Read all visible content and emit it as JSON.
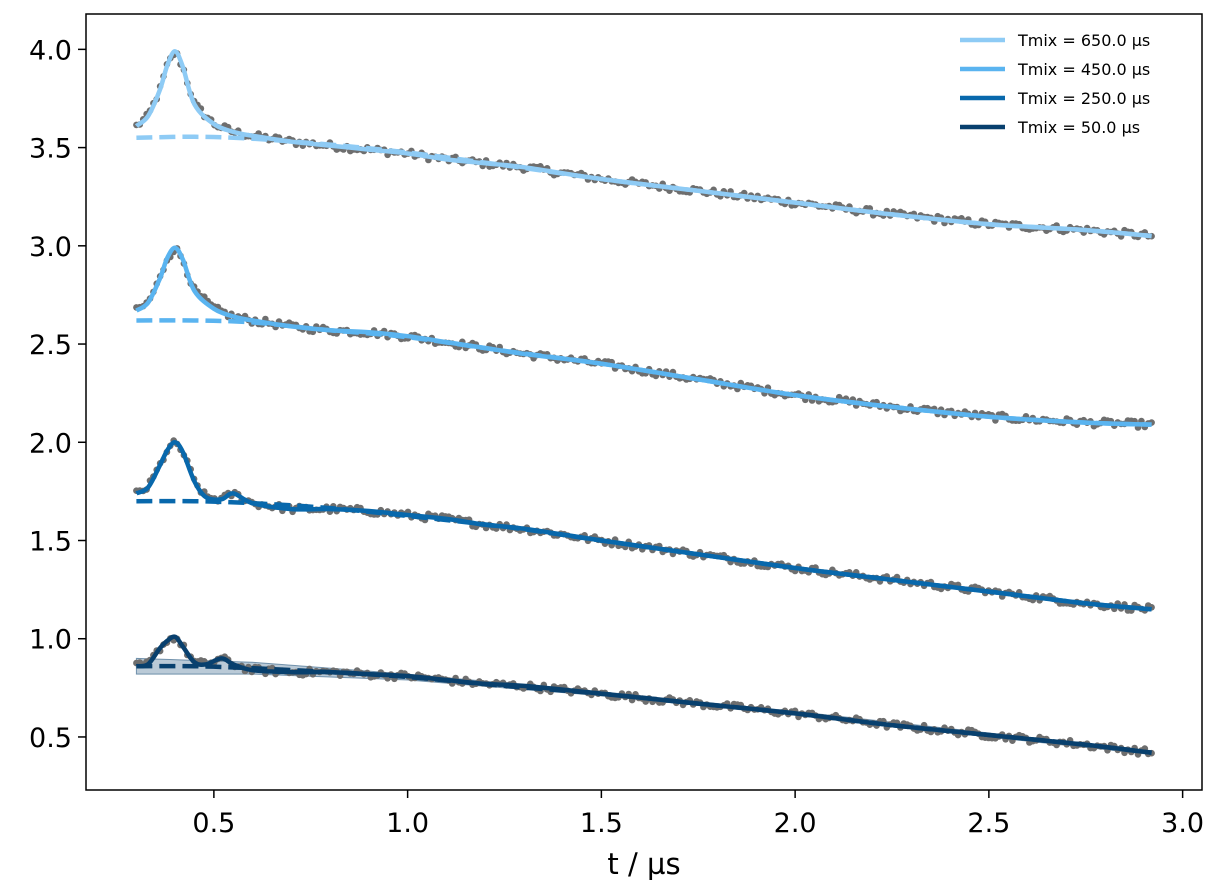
{
  "chart_data": {
    "type": "line",
    "title": "",
    "xlabel": "t / µs",
    "ylabel": "",
    "xlim": [
      0.17,
      3.05
    ],
    "ylim": [
      0.23,
      4.18
    ],
    "xticks": [
      0.5,
      1.0,
      1.5,
      2.0,
      2.5,
      3.0
    ],
    "xtick_labels": [
      "0.5",
      "1.0",
      "1.5",
      "2.0",
      "2.5",
      "3.0"
    ],
    "yticks": [
      0.5,
      1.0,
      1.5,
      2.0,
      2.5,
      3.0,
      3.5,
      4.0
    ],
    "ytick_labels": [
      "0.5",
      "1.0",
      "1.5",
      "2.0",
      "2.5",
      "3.0",
      "3.5",
      "4.0"
    ],
    "grid": false,
    "legend_position": "top-right",
    "data_color": "#6e6e6e",
    "series": [
      {
        "name": "Tmix = 650.0 µs",
        "color": "#8ecbf5",
        "fit": [
          [
            0.3,
            3.61
          ],
          [
            0.33,
            3.66
          ],
          [
            0.36,
            3.79
          ],
          [
            0.38,
            3.92
          ],
          [
            0.4,
            3.99
          ],
          [
            0.42,
            3.91
          ],
          [
            0.45,
            3.72
          ],
          [
            0.5,
            3.62
          ],
          [
            0.55,
            3.58
          ],
          [
            0.6,
            3.56
          ],
          [
            0.7,
            3.53
          ],
          [
            0.8,
            3.51
          ],
          [
            0.9,
            3.49
          ],
          [
            1.0,
            3.47
          ],
          [
            1.1,
            3.44
          ],
          [
            1.2,
            3.42
          ],
          [
            1.3,
            3.4
          ],
          [
            1.5,
            3.34
          ],
          [
            1.75,
            3.28
          ],
          [
            2.0,
            3.22
          ],
          [
            2.25,
            3.16
          ],
          [
            2.5,
            3.11
          ],
          [
            2.75,
            3.08
          ],
          [
            2.92,
            3.05
          ]
        ],
        "background": [
          [
            0.3,
            3.55
          ],
          [
            0.45,
            3.555
          ],
          [
            0.6,
            3.545
          ],
          [
            0.8,
            3.515
          ],
          [
            1.0,
            3.475
          ],
          [
            1.25,
            3.41
          ],
          [
            1.5,
            3.34
          ],
          [
            1.75,
            3.28
          ],
          [
            2.0,
            3.22
          ],
          [
            2.25,
            3.16
          ],
          [
            2.5,
            3.11
          ],
          [
            2.75,
            3.08
          ],
          [
            2.92,
            3.05
          ]
        ]
      },
      {
        "name": "Tmix = 450.0 µs",
        "color": "#5ab4f0",
        "fit": [
          [
            0.3,
            2.67
          ],
          [
            0.33,
            2.71
          ],
          [
            0.36,
            2.83
          ],
          [
            0.38,
            2.94
          ],
          [
            0.4,
            2.99
          ],
          [
            0.42,
            2.93
          ],
          [
            0.45,
            2.77
          ],
          [
            0.5,
            2.68
          ],
          [
            0.55,
            2.64
          ],
          [
            0.6,
            2.62
          ],
          [
            0.7,
            2.59
          ],
          [
            0.8,
            2.57
          ],
          [
            0.9,
            2.56
          ],
          [
            1.0,
            2.54
          ],
          [
            1.1,
            2.51
          ],
          [
            1.2,
            2.48
          ],
          [
            1.3,
            2.45
          ],
          [
            1.5,
            2.4
          ],
          [
            1.75,
            2.32
          ],
          [
            2.0,
            2.24
          ],
          [
            2.25,
            2.18
          ],
          [
            2.5,
            2.13
          ],
          [
            2.75,
            2.1
          ],
          [
            2.92,
            2.09
          ]
        ],
        "background": [
          [
            0.3,
            2.62
          ],
          [
            0.45,
            2.62
          ],
          [
            0.6,
            2.61
          ],
          [
            0.8,
            2.57
          ],
          [
            1.0,
            2.535
          ],
          [
            1.25,
            2.465
          ],
          [
            1.5,
            2.4
          ],
          [
            1.75,
            2.32
          ],
          [
            2.0,
            2.24
          ],
          [
            2.25,
            2.18
          ],
          [
            2.5,
            2.13
          ],
          [
            2.75,
            2.1
          ],
          [
            2.92,
            2.09
          ]
        ]
      },
      {
        "name": "Tmix = 250.0 µs",
        "color": "#0868ac",
        "fit": [
          [
            0.3,
            1.74
          ],
          [
            0.33,
            1.77
          ],
          [
            0.36,
            1.88
          ],
          [
            0.38,
            1.96
          ],
          [
            0.4,
            2.0
          ],
          [
            0.42,
            1.95
          ],
          [
            0.45,
            1.8
          ],
          [
            0.48,
            1.72
          ],
          [
            0.52,
            1.71
          ],
          [
            0.55,
            1.74
          ],
          [
            0.6,
            1.69
          ],
          [
            0.7,
            1.66
          ],
          [
            0.8,
            1.66
          ],
          [
            0.9,
            1.65
          ],
          [
            1.0,
            1.63
          ],
          [
            1.1,
            1.61
          ],
          [
            1.2,
            1.58
          ],
          [
            1.3,
            1.56
          ],
          [
            1.5,
            1.5
          ],
          [
            1.75,
            1.43
          ],
          [
            2.0,
            1.36
          ],
          [
            2.25,
            1.3
          ],
          [
            2.5,
            1.24
          ],
          [
            2.75,
            1.18
          ],
          [
            2.92,
            1.15
          ]
        ],
        "background": [
          [
            0.3,
            1.7
          ],
          [
            0.45,
            1.7
          ],
          [
            0.6,
            1.69
          ],
          [
            0.8,
            1.665
          ],
          [
            1.0,
            1.625
          ],
          [
            1.25,
            1.57
          ],
          [
            1.5,
            1.5
          ],
          [
            1.75,
            1.43
          ],
          [
            2.0,
            1.36
          ],
          [
            2.25,
            1.3
          ],
          [
            2.5,
            1.24
          ],
          [
            2.75,
            1.18
          ],
          [
            2.92,
            1.15
          ]
        ]
      },
      {
        "name": "Tmix = 50.0 µs",
        "color": "#08406e",
        "fit": [
          [
            0.3,
            0.86
          ],
          [
            0.33,
            0.87
          ],
          [
            0.36,
            0.95
          ],
          [
            0.38,
            0.99
          ],
          [
            0.4,
            1.01
          ],
          [
            0.42,
            0.96
          ],
          [
            0.45,
            0.88
          ],
          [
            0.48,
            0.87
          ],
          [
            0.52,
            0.9
          ],
          [
            0.55,
            0.87
          ],
          [
            0.6,
            0.84
          ],
          [
            0.7,
            0.83
          ],
          [
            0.8,
            0.83
          ],
          [
            0.9,
            0.82
          ],
          [
            1.0,
            0.81
          ],
          [
            1.1,
            0.79
          ],
          [
            1.2,
            0.77
          ],
          [
            1.3,
            0.76
          ],
          [
            1.5,
            0.72
          ],
          [
            1.75,
            0.67
          ],
          [
            2.0,
            0.62
          ],
          [
            2.25,
            0.56
          ],
          [
            2.5,
            0.51
          ],
          [
            2.75,
            0.46
          ],
          [
            2.92,
            0.42
          ]
        ],
        "background": [
          [
            0.3,
            0.86
          ],
          [
            0.45,
            0.86
          ],
          [
            0.6,
            0.85
          ],
          [
            0.8,
            0.83
          ],
          [
            1.0,
            0.805
          ],
          [
            1.25,
            0.76
          ],
          [
            1.5,
            0.72
          ],
          [
            1.75,
            0.67
          ],
          [
            2.0,
            0.62
          ],
          [
            2.25,
            0.56
          ],
          [
            2.5,
            0.51
          ],
          [
            2.75,
            0.46
          ],
          [
            2.92,
            0.42
          ]
        ],
        "band": [
          [
            0.3,
            0.82,
            0.9
          ],
          [
            0.6,
            0.82,
            0.88
          ],
          [
            1.0,
            0.79,
            0.82
          ],
          [
            1.5,
            0.71,
            0.73
          ],
          [
            2.0,
            0.61,
            0.63
          ],
          [
            2.5,
            0.5,
            0.52
          ],
          [
            2.92,
            0.41,
            0.43
          ]
        ]
      }
    ]
  }
}
